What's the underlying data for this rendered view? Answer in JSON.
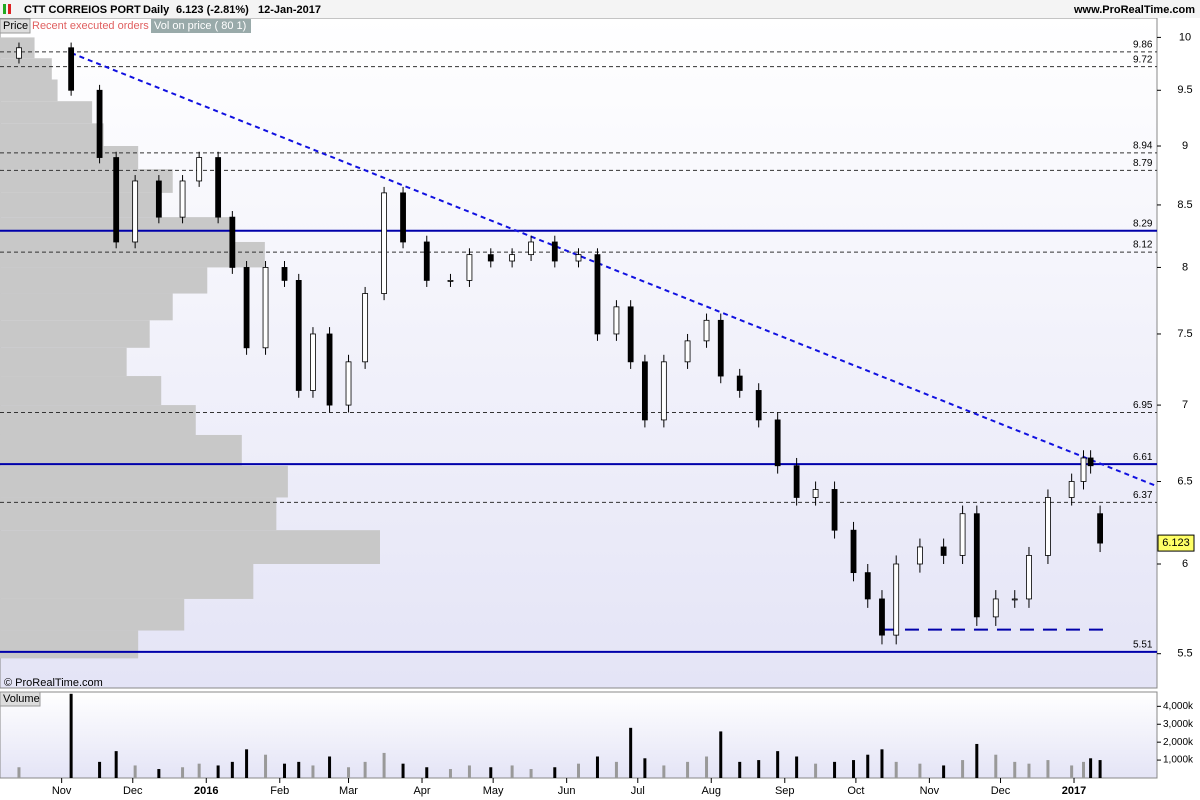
{
  "chart_data": {
    "type": "candlestick",
    "title": "CTT CORREIOS PORT",
    "period": "Daily",
    "last_change": "6.123 (-2.81%)",
    "date": "12-Jan-2017",
    "source": "www.ProRealTime.com",
    "copyright": "© ProRealTime.com",
    "tabs": [
      "Price",
      "Recent executed orders",
      "Vol on price ( 80 1)"
    ],
    "volume_title": "Volume",
    "log_scale": true,
    "x": [
      6,
      28,
      40,
      47,
      55,
      65,
      75,
      82,
      90,
      96,
      102,
      110,
      118,
      124,
      130,
      137,
      145,
      152,
      160,
      168,
      178,
      188,
      196,
      205,
      214,
      222,
      232,
      242,
      250,
      258,
      264,
      270,
      278,
      288,
      296,
      302,
      310,
      318,
      326,
      334,
      342,
      350,
      358,
      364,
      370,
      376,
      386,
      396,
      404,
      410,
      418,
      426,
      432,
      440,
      450,
      455,
      458,
      462
    ],
    "open": [
      9.8,
      9.9,
      9.5,
      8.9,
      8.2,
      8.7,
      8.4,
      8.7,
      8.9,
      8.4,
      8.0,
      7.4,
      8.0,
      7.9,
      7.1,
      7.5,
      7.0,
      7.3,
      7.8,
      8.6,
      8.2,
      7.9,
      7.9,
      8.1,
      8.05,
      8.1,
      8.2,
      8.05,
      8.1,
      7.5,
      7.7,
      7.3,
      6.9,
      7.3,
      7.45,
      7.6,
      7.2,
      7.1,
      6.9,
      6.6,
      6.4,
      6.45,
      6.2,
      5.95,
      5.8,
      5.6,
      6.0,
      6.1,
      6.05,
      6.3,
      5.7,
      5.8,
      5.8,
      6.05,
      6.4,
      6.5,
      6.65,
      6.3
    ],
    "high": [
      9.95,
      9.95,
      9.55,
      8.95,
      8.75,
      8.75,
      8.75,
      8.95,
      8.95,
      8.45,
      8.05,
      8.05,
      8.05,
      7.95,
      7.55,
      7.55,
      7.35,
      7.85,
      8.65,
      8.65,
      8.25,
      7.95,
      8.15,
      8.15,
      8.15,
      8.25,
      8.25,
      8.15,
      8.15,
      7.75,
      7.75,
      7.35,
      7.35,
      7.5,
      7.65,
      7.65,
      7.25,
      7.15,
      6.95,
      6.65,
      6.5,
      6.5,
      6.25,
      6.0,
      5.85,
      6.05,
      6.15,
      6.15,
      6.35,
      6.35,
      5.85,
      5.85,
      6.1,
      6.45,
      6.55,
      6.7,
      6.7,
      6.35
    ],
    "low": [
      9.75,
      9.45,
      8.85,
      8.15,
      8.15,
      8.35,
      8.35,
      8.65,
      8.35,
      7.95,
      7.35,
      7.35,
      7.85,
      7.05,
      7.05,
      6.95,
      6.95,
      7.25,
      7.75,
      8.15,
      7.85,
      7.85,
      7.85,
      8.0,
      8.0,
      8.05,
      8.0,
      8.0,
      7.45,
      7.45,
      7.25,
      6.85,
      6.85,
      7.25,
      7.4,
      7.15,
      7.05,
      6.85,
      6.55,
      6.35,
      6.35,
      6.15,
      5.9,
      5.75,
      5.55,
      5.55,
      5.95,
      6.0,
      6.0,
      5.65,
      5.65,
      5.75,
      5.75,
      6.0,
      6.35,
      6.45,
      6.55,
      6.07
    ],
    "close": [
      9.9,
      9.5,
      8.9,
      8.2,
      8.7,
      8.4,
      8.7,
      8.9,
      8.4,
      8.0,
      7.4,
      8.0,
      7.9,
      7.1,
      7.5,
      7.0,
      7.3,
      7.8,
      8.6,
      8.2,
      7.9,
      7.9,
      8.1,
      8.05,
      8.1,
      8.2,
      8.05,
      8.1,
      7.5,
      7.7,
      7.3,
      6.9,
      7.3,
      7.45,
      7.6,
      7.2,
      7.1,
      6.9,
      6.6,
      6.4,
      6.45,
      6.2,
      5.95,
      5.8,
      5.6,
      6.0,
      6.1,
      6.05,
      6.3,
      5.7,
      5.8,
      5.8,
      6.05,
      6.4,
      6.5,
      6.65,
      6.6,
      6.123
    ],
    "volume": [
      600000,
      4700000,
      900000,
      1500000,
      700000,
      500000,
      600000,
      800000,
      700000,
      900000,
      1600000,
      1300000,
      800000,
      900000,
      700000,
      1200000,
      600000,
      900000,
      1400000,
      800000,
      600000,
      500000,
      700000,
      600000,
      700000,
      500000,
      600000,
      800000,
      1200000,
      900000,
      2800000,
      1100000,
      700000,
      900000,
      1200000,
      2600000,
      900000,
      1000000,
      1500000,
      1200000,
      800000,
      900000,
      1000000,
      1300000,
      1600000,
      900000,
      800000,
      700000,
      1000000,
      1900000,
      1300000,
      900000,
      800000,
      1000000,
      700000,
      900000,
      1100000,
      1000000
    ],
    "volume_color": "#999999",
    "vlim": [
      0,
      4800000
    ],
    "vticks": [
      {
        "value": 1000000,
        "label": "1,000k"
      },
      {
        "value": 2000000,
        "label": "2,000k"
      },
      {
        "value": 3000000,
        "label": "3,000k"
      },
      {
        "value": 4000000,
        "label": "4,000k"
      }
    ],
    "profile_prices": [
      9.9,
      9.7,
      9.5,
      9.3,
      9.1,
      8.9,
      8.7,
      8.5,
      8.3,
      8.1,
      7.9,
      7.7,
      7.5,
      7.3,
      7.1,
      6.9,
      6.7,
      6.5,
      6.3,
      6.1,
      5.9,
      5.7,
      5.55
    ],
    "profile_values": [
      30,
      45,
      50,
      80,
      90,
      120,
      150,
      140,
      200,
      230,
      180,
      150,
      130,
      110,
      140,
      170,
      210,
      250,
      240,
      330,
      220,
      160,
      120
    ],
    "profile_color": "#c8c8c8",
    "levels": [
      9.86,
      9.72,
      8.94,
      8.79,
      8.29,
      8.12,
      6.95,
      6.61,
      6.37,
      5.51
    ],
    "solid_levels": [
      8.29,
      6.61,
      5.51
    ],
    "level_color": "#0000aa",
    "support": {
      "value": 5.63,
      "x": [
        370,
        466
      ]
    },
    "trendline": {
      "x": [
        28,
        486
      ],
      "y": [
        9.85,
        6.47
      ]
    },
    "last_price": 6.123,
    "xlim": [
      -2,
      486
    ],
    "ylim": [
      5.32,
      10.19
    ],
    "xticks": [
      {
        "value": 24,
        "label": "Nov"
      },
      {
        "value": 54,
        "label": "Dec"
      },
      {
        "value": 85,
        "label": "2016"
      },
      {
        "value": 116,
        "label": "Feb"
      },
      {
        "value": 145,
        "label": "Mar"
      },
      {
        "value": 176,
        "label": "Apr"
      },
      {
        "value": 206,
        "label": "May"
      },
      {
        "value": 237,
        "label": "Jun"
      },
      {
        "value": 267,
        "label": "Jul"
      },
      {
        "value": 298,
        "label": "Aug"
      },
      {
        "value": 329,
        "label": "Sep"
      },
      {
        "value": 359,
        "label": "Oct"
      },
      {
        "value": 390,
        "label": "Nov"
      },
      {
        "value": 420,
        "label": "Dec"
      },
      {
        "value": 451,
        "label": "2017"
      }
    ],
    "yticks": [
      10,
      9.5,
      9,
      8.5,
      8,
      7.5,
      7,
      6.5,
      6,
      5.5
    ]
  }
}
